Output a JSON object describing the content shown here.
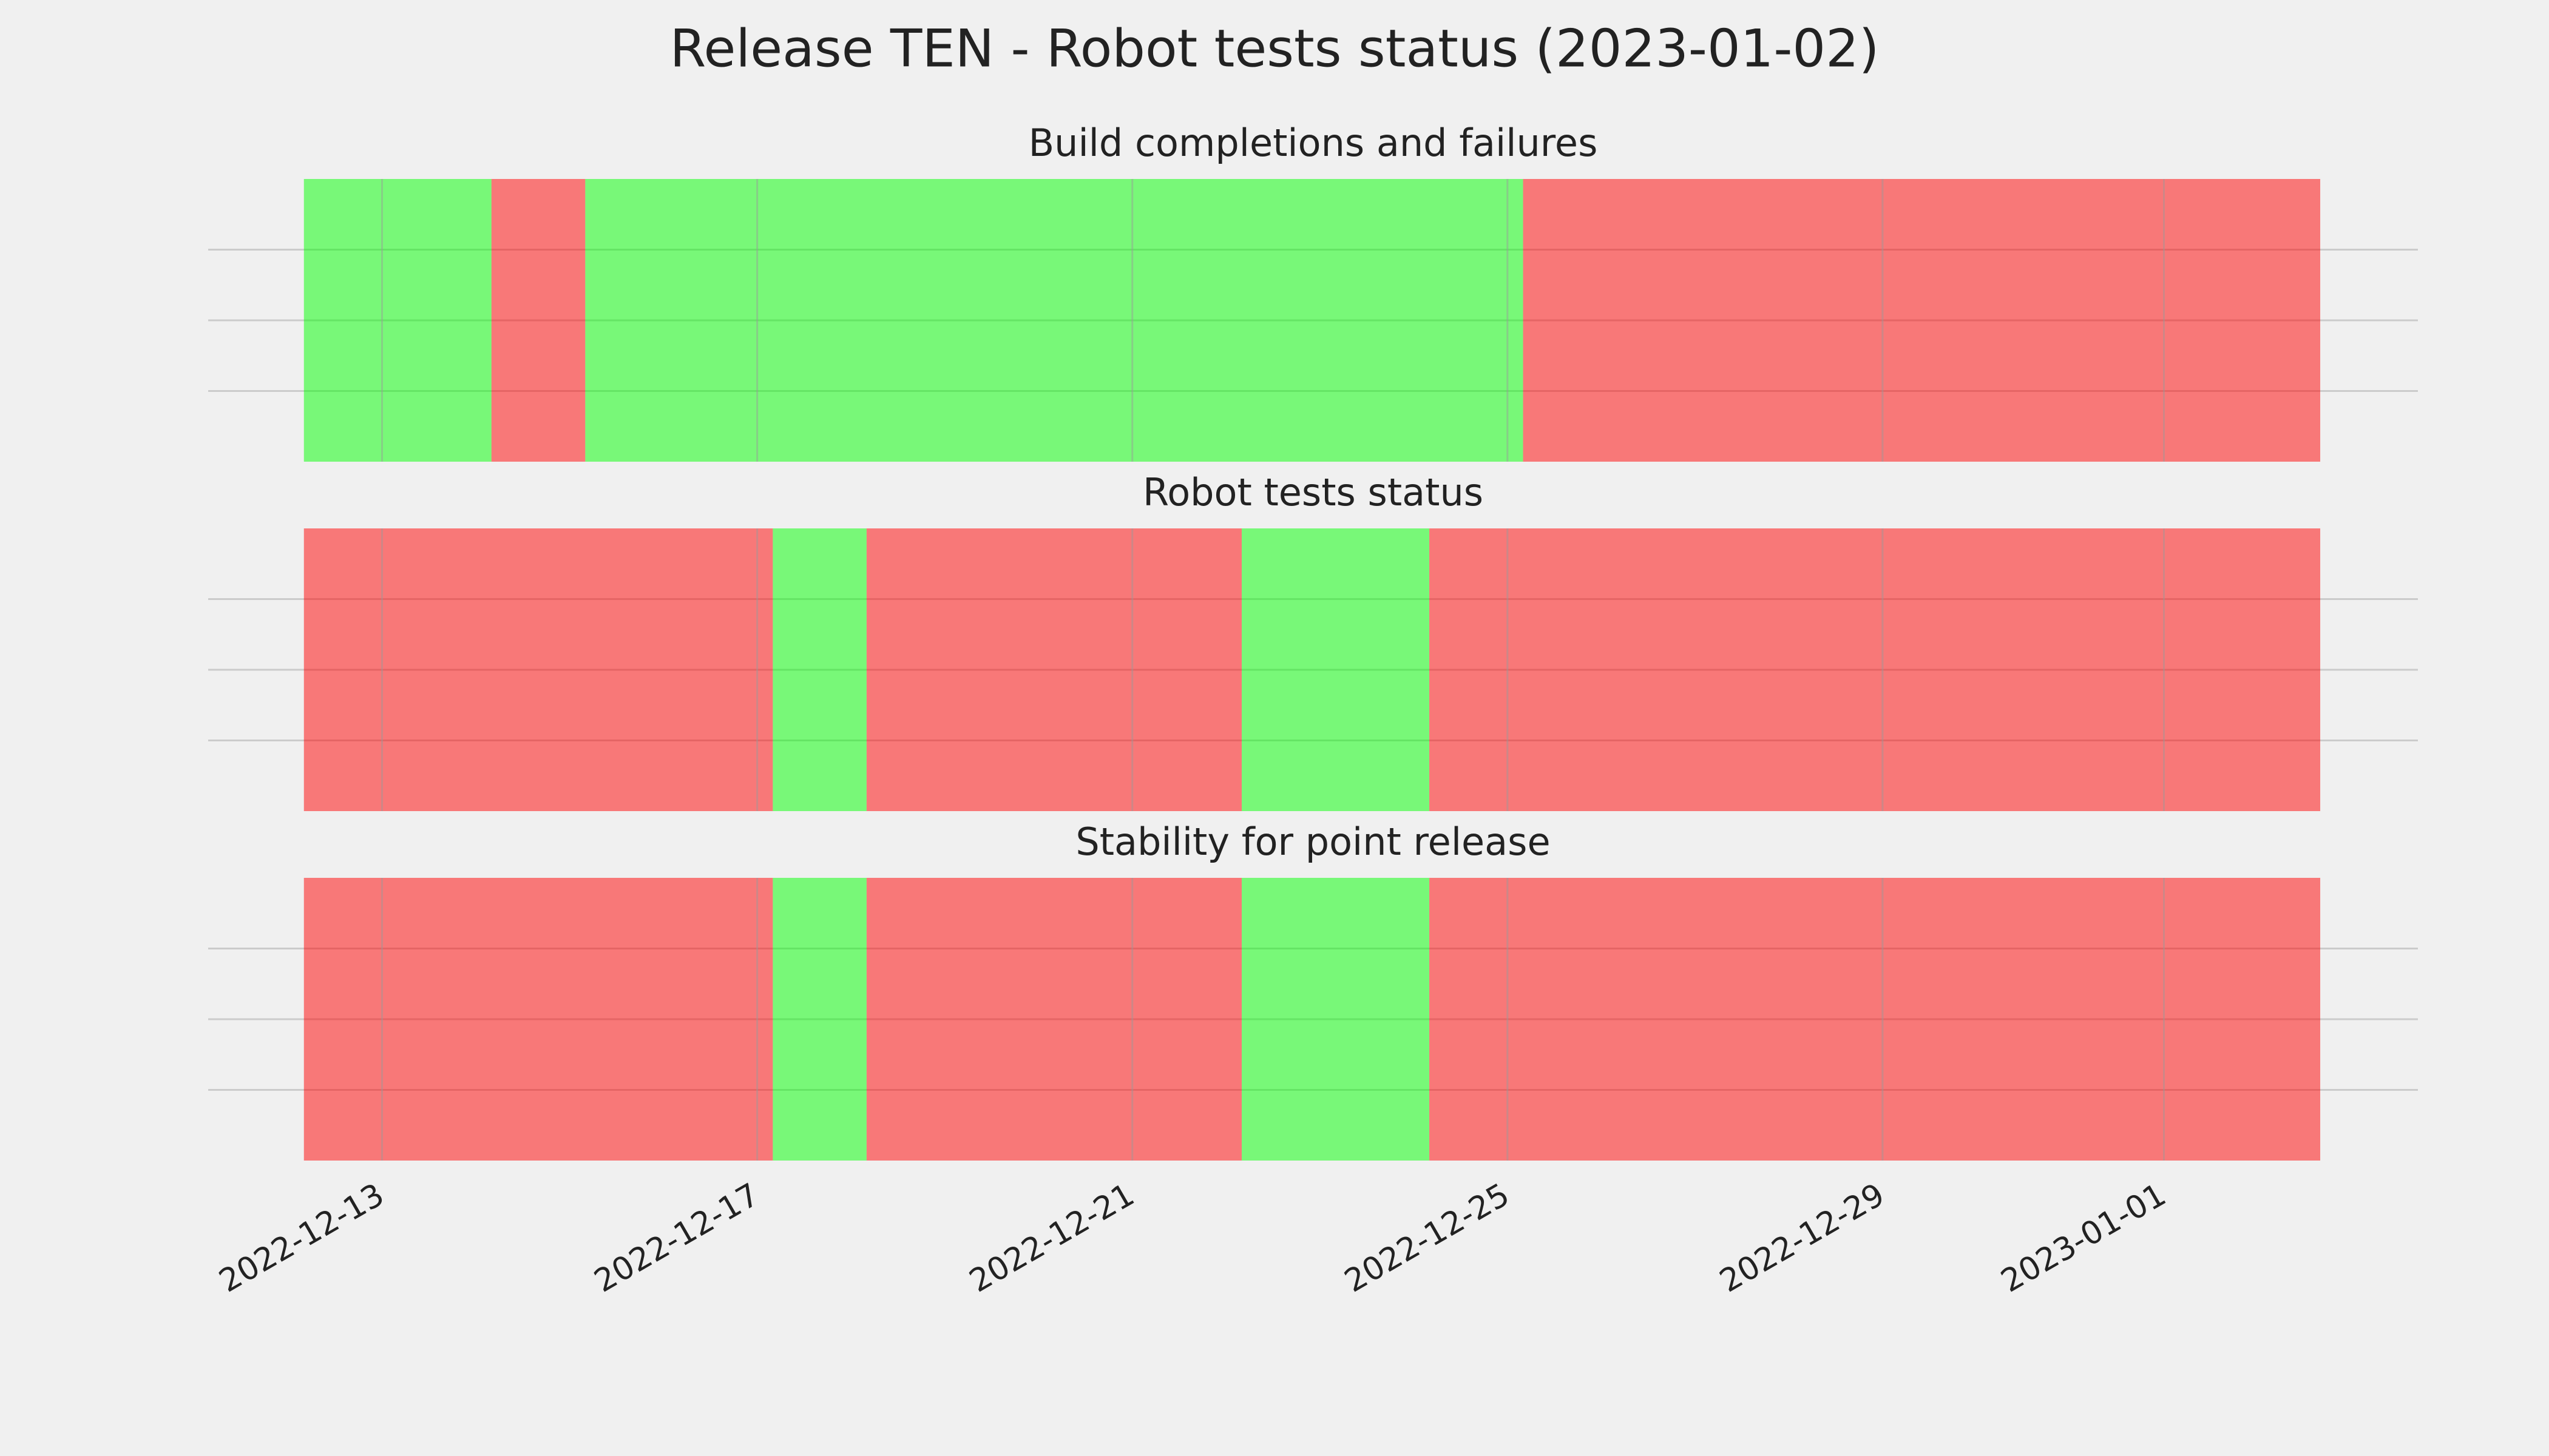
{
  "chart_data": [
    {
      "type": "timeline",
      "title": "Release TEN - Robot tests status (2023-01-02)",
      "subtitle": "Build completions and failures",
      "xlim": [
        "2022-12-11T03:30",
        "2023-01-03T17:00"
      ],
      "xticks": [
        "2022-12-13",
        "2022-12-17",
        "2022-12-21",
        "2022-12-25",
        "2022-12-29",
        "2023-01-01"
      ],
      "ylim": [
        0,
        1
      ],
      "ygrid": [
        0.25,
        0.5,
        0.75
      ],
      "opacity": 0.5,
      "segments": [
        {
          "start": "2022-12-12T04:00",
          "end": "2022-12-14T04:00",
          "color": "#00ff00"
        },
        {
          "start": "2022-12-14T04:00",
          "end": "2022-12-15T04:00",
          "color": "#ff0000"
        },
        {
          "start": "2022-12-15T04:00",
          "end": "2022-12-25T04:00",
          "color": "#00ff00"
        },
        {
          "start": "2022-12-25T04:00",
          "end": "2023-01-02T16:00",
          "color": "#ff0000"
        }
      ]
    },
    {
      "type": "timeline",
      "subtitle": "Robot tests status",
      "xlim": [
        "2022-12-11T03:30",
        "2023-01-03T17:00"
      ],
      "ylim": [
        0,
        1
      ],
      "ygrid": [
        0.25,
        0.5,
        0.75
      ],
      "opacity": 0.5,
      "segments": [
        {
          "start": "2022-12-12T04:00",
          "end": "2022-12-17T04:00",
          "color": "#ff0000"
        },
        {
          "start": "2022-12-17T04:00",
          "end": "2022-12-18T04:00",
          "color": "#00ff00"
        },
        {
          "start": "2022-12-18T04:00",
          "end": "2022-12-22T04:00",
          "color": "#ff0000"
        },
        {
          "start": "2022-12-22T04:00",
          "end": "2022-12-24T04:00",
          "color": "#00ff00"
        },
        {
          "start": "2022-12-24T04:00",
          "end": "2023-01-02T16:00",
          "color": "#ff0000"
        }
      ]
    },
    {
      "type": "timeline",
      "subtitle": "Stability for point release",
      "xlim": [
        "2022-12-11T03:30",
        "2023-01-03T17:00"
      ],
      "ylim": [
        0,
        1
      ],
      "ygrid": [
        0.25,
        0.5,
        0.75
      ],
      "opacity": 0.5,
      "segments": [
        {
          "start": "2022-12-12T04:00",
          "end": "2022-12-17T04:00",
          "color": "#ff0000"
        },
        {
          "start": "2022-12-17T04:00",
          "end": "2022-12-18T04:00",
          "color": "#00ff00"
        },
        {
          "start": "2022-12-18T04:00",
          "end": "2022-12-22T04:00",
          "color": "#ff0000"
        },
        {
          "start": "2022-12-22T04:00",
          "end": "2022-12-24T04:00",
          "color": "#00ff00"
        },
        {
          "start": "2022-12-24T04:00",
          "end": "2023-01-02T16:00",
          "color": "#ff0000"
        }
      ]
    }
  ]
}
